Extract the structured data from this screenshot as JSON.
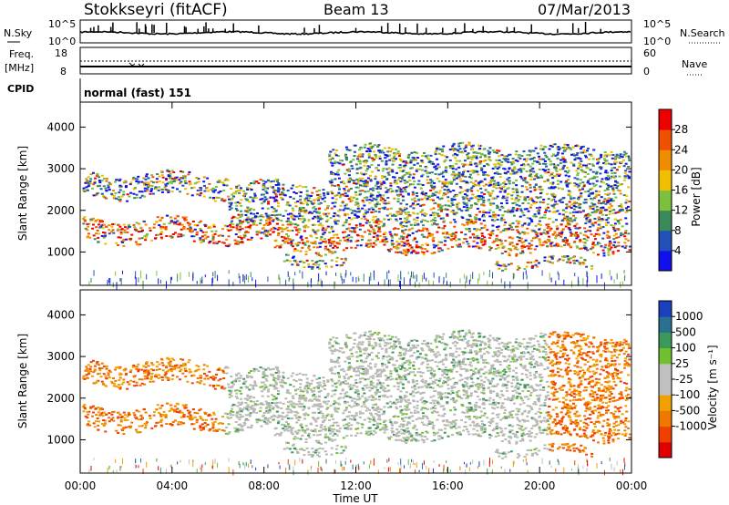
{
  "header": {
    "station": "Stokkseyri (fitACF)",
    "beam": "Beam 13",
    "date": "07/Mar/2013"
  },
  "top_panels": {
    "nsky_label": "N.Sky",
    "nsky_ticks": [
      "10^5",
      "10^0"
    ],
    "nsearch_label": "N.Search",
    "nsearch_ticks": [
      "10^5",
      "10^0"
    ],
    "freq_label": "Freq.",
    "freq_unit": "[MHz]",
    "freq_ticks": [
      "18",
      "8"
    ],
    "nave_label": "Nave",
    "nave_ticks": [
      "60",
      "0"
    ],
    "cpid_label": "CPID",
    "cpid_value": "normal (fast) 151"
  },
  "colors": {
    "power_scale": [
      "#1010ee",
      "#2050b8",
      "#3a8a5a",
      "#7cc040",
      "#f0c000",
      "#f08c00",
      "#f05000",
      "#ee0000"
    ],
    "velocity_scale": [
      "#e00000",
      "#f04000",
      "#f07800",
      "#f0a000",
      "#c0c0c0",
      "#c0c0c0",
      "#70c030",
      "#3a9a5a",
      "#2a7090",
      "#1a40c0"
    ],
    "ground_scatter": "#b8b8b4"
  },
  "chart_data": [
    {
      "type": "heatmap",
      "title": "Power",
      "ylabel": "Slant Range [km]",
      "xlabel": "",
      "ylim": [
        200,
        4600
      ],
      "xlim": [
        "00:00",
        "24:00"
      ],
      "y_ticks": [
        "1000",
        "2000",
        "3000",
        "4000"
      ],
      "colorbar_label": "Power [dB]",
      "colorbar_ticks": [
        "4",
        "8",
        "12",
        "16",
        "20",
        "24",
        "28"
      ],
      "colorbar_range": [
        0,
        32
      ]
    },
    {
      "type": "heatmap",
      "title": "Velocity",
      "ylabel": "Slant Range [km]",
      "xlabel": "Time UT",
      "ylim": [
        200,
        4600
      ],
      "xlim": [
        "00:00",
        "24:00"
      ],
      "y_ticks": [
        "1000",
        "2000",
        "3000",
        "4000"
      ],
      "x_ticks": [
        "00:00",
        "04:00",
        "08:00",
        "12:00",
        "16:00",
        "20:00",
        "00:00"
      ],
      "colorbar_label": "Velocity [m s⁻¹]",
      "colorbar_ticks": [
        "1000",
        "500",
        "100",
        "25",
        "-25",
        "-100",
        "-500",
        "-1000"
      ]
    }
  ]
}
